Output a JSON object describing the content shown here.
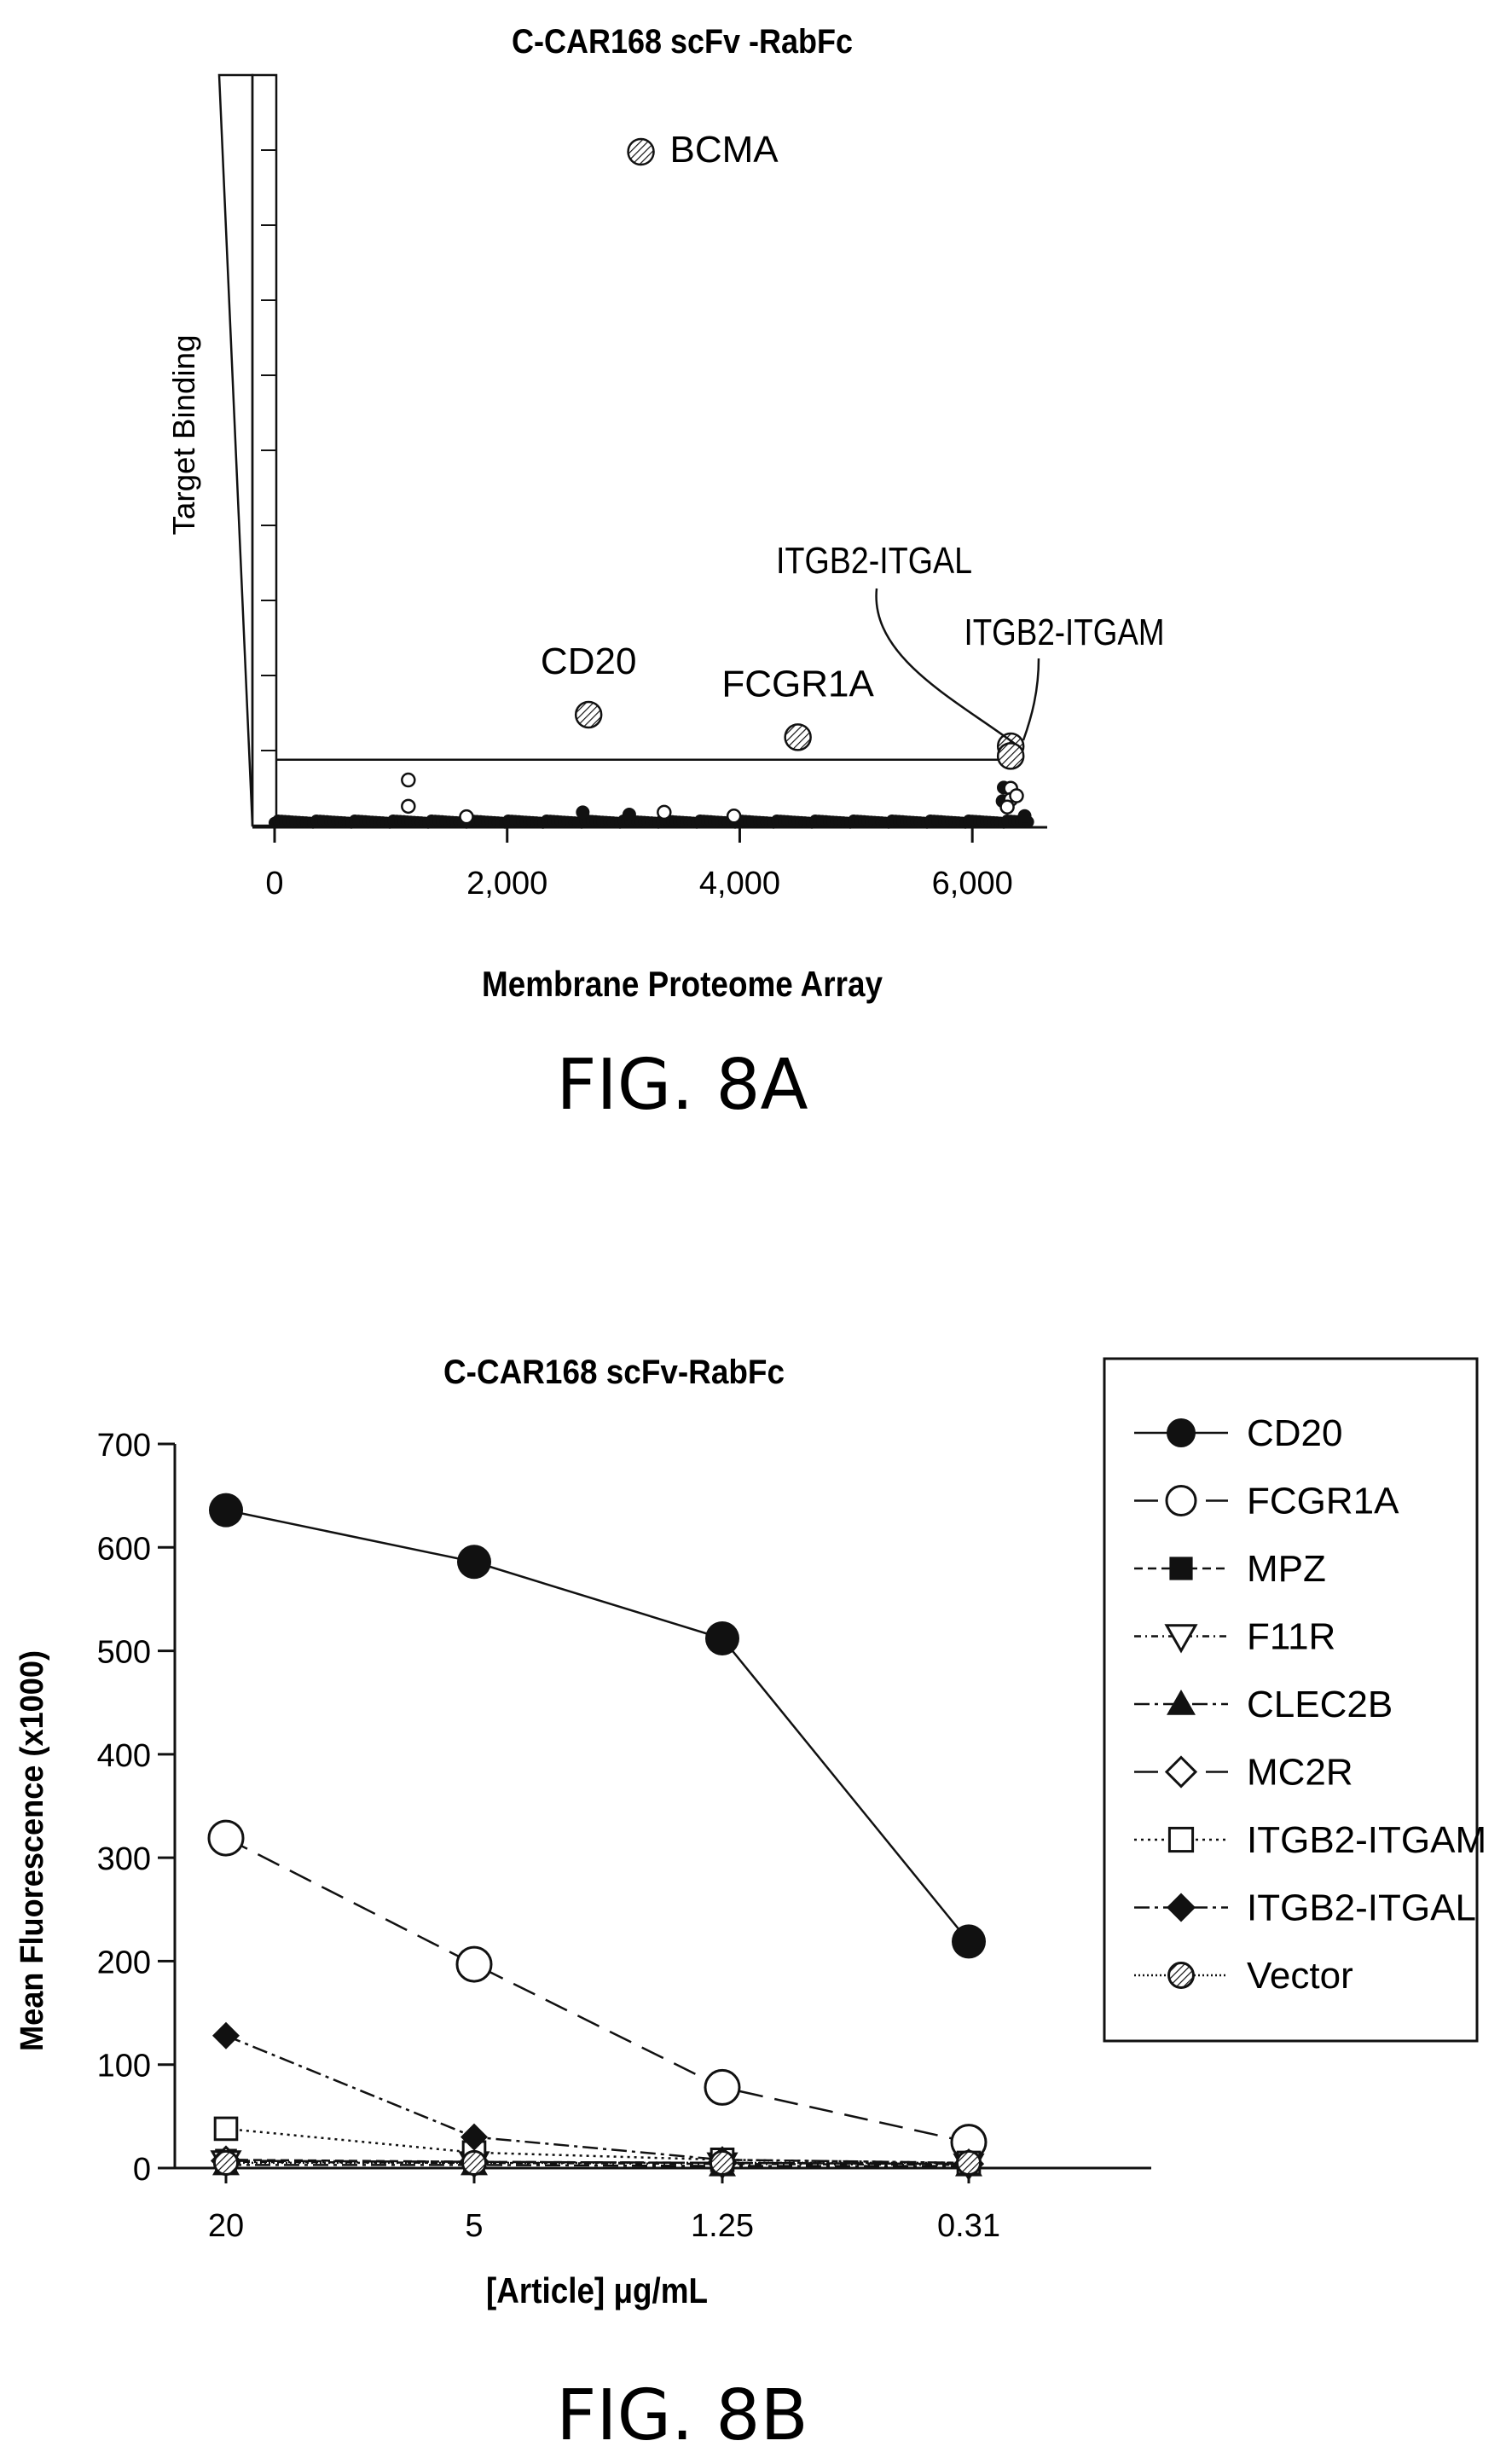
{
  "chart_data": [
    {
      "type": "scatter",
      "title": "C-CAR168 scFv -RabFc",
      "xlabel": "Membrane Proteome Array",
      "ylabel": "Target Binding",
      "figure_label": "FIG. 8A",
      "xlim": [
        0,
        6600
      ],
      "ylim": [
        0,
        100
      ],
      "xticks": [
        "0",
        "2,000",
        "4,000",
        "6,000"
      ],
      "threshold_y": 9,
      "labeled_points": [
        {
          "name": "BCMA",
          "x": 3150,
          "y": 90
        },
        {
          "name": "CD20",
          "x": 2700,
          "y": 15
        },
        {
          "name": "FCGR1A",
          "x": 4500,
          "y": 12
        },
        {
          "name": "ITGB2-ITGAL",
          "x": 6330,
          "y": 10.8
        },
        {
          "name": "ITGB2-ITGAM",
          "x": 6330,
          "y": 9.5
        }
      ],
      "background_points_y": 0.6,
      "background_open_points": [
        {
          "x": 1150,
          "y": 6.3
        },
        {
          "x": 1150,
          "y": 2.8
        },
        {
          "x": 1650,
          "y": 1.4
        },
        {
          "x": 3350,
          "y": 2
        },
        {
          "x": 3950,
          "y": 1.5
        },
        {
          "x": 6330,
          "y": 5.2
        },
        {
          "x": 6330,
          "y": 3.7
        },
        {
          "x": 6300,
          "y": 2.7
        },
        {
          "x": 6380,
          "y": 4.2
        }
      ],
      "background_filled_points": [
        {
          "x": 6270,
          "y": 5.3
        },
        {
          "x": 6260,
          "y": 3.5
        },
        {
          "x": 2650,
          "y": 2
        },
        {
          "x": 3050,
          "y": 1.7
        },
        {
          "x": 6450,
          "y": 1.5
        }
      ]
    },
    {
      "type": "line",
      "title": "C-CAR168 scFv-RabFc",
      "xlabel": "[Article] μg/mL",
      "ylabel": "Mean Fluorescence (x1000)",
      "figure_label": "FIG. 8B",
      "categories": [
        "20",
        "5",
        "1.25",
        "0.31"
      ],
      "ylim": [
        0,
        700
      ],
      "yticks": [
        "0",
        "100",
        "200",
        "300",
        "400",
        "500",
        "600",
        "700"
      ],
      "legend_position": "top-right",
      "series": [
        {
          "name": "CD20",
          "values": [
            636,
            586,
            512,
            219
          ],
          "marker": "circle-filled",
          "dash": "solid"
        },
        {
          "name": "FCGR1A",
          "values": [
            319,
            197,
            78,
            25
          ],
          "marker": "circle-open",
          "dash": "long-dash"
        },
        {
          "name": "MPZ",
          "values": [
            8,
            6,
            5,
            4
          ],
          "marker": "square-filled",
          "dash": "dash"
        },
        {
          "name": "F11R",
          "values": [
            6,
            5,
            4,
            3
          ],
          "marker": "triangle-down-open",
          "dash": "dot-dash"
        },
        {
          "name": "CLEC2B",
          "values": [
            3,
            3,
            2,
            2
          ],
          "marker": "triangle-filled",
          "dash": "dash-dot"
        },
        {
          "name": "MC2R",
          "values": [
            7,
            6,
            5,
            4
          ],
          "marker": "diamond-open",
          "dash": "long-dash"
        },
        {
          "name": "ITGB2-ITGAM",
          "values": [
            38,
            15,
            8,
            5
          ],
          "marker": "square-open",
          "dash": "dot"
        },
        {
          "name": "ITGB2-ITGAL",
          "values": [
            128,
            30,
            8,
            5
          ],
          "marker": "diamond-filled",
          "dash": "dash-dot"
        },
        {
          "name": "Vector",
          "values": [
            5,
            5,
            5,
            5
          ],
          "marker": "circle-hatched",
          "dash": "dense-dot"
        }
      ]
    }
  ]
}
